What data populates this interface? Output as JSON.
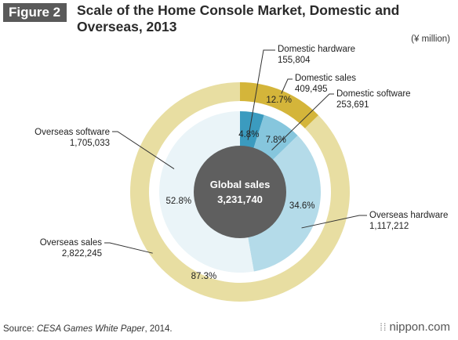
{
  "figure_label": "Figure 2",
  "title": "Scale of the Home Console Market, Domestic and Overseas, 2013",
  "unit_label": "(¥ million)",
  "source": {
    "prefix": "Source: ",
    "italic": "CESA Games White Paper",
    "suffix": ", 2014."
  },
  "logo": {
    "mark": "⁞⁞",
    "text": "nippon.com"
  },
  "colors": {
    "outer_domestic": "#d4b53a",
    "outer_overseas": "#e8dea2",
    "inner_dom_hw": "#3b9bbf",
    "inner_dom_sw": "#86c6dd",
    "inner_ovs_hw": "#b4dbe9",
    "inner_ovs_sw": "#eaf4f8",
    "center": "#5f5f5f",
    "leader": "#333333"
  },
  "chart_data": {
    "type": "pie",
    "title": "Scale of the Home Console Market, Domestic and Overseas, 2013",
    "unit": "¥ million",
    "center": {
      "label": "Global sales",
      "value": "3,231,740"
    },
    "outer_ring": [
      {
        "name": "Domestic sales",
        "value": 409495,
        "value_label": "409,495",
        "percent_label": "12.7%"
      },
      {
        "name": "Overseas sales",
        "value": 2822245,
        "value_label": "2,822,245",
        "percent_label": "87.3%"
      }
    ],
    "inner_ring": [
      {
        "name": "Domestic hardware",
        "value": 155804,
        "value_label": "155,804",
        "percent_label": "4.8%"
      },
      {
        "name": "Domestic software",
        "value": 253691,
        "value_label": "253,691",
        "percent_label": "7.8%"
      },
      {
        "name": "Overseas hardware",
        "value": 1117212,
        "value_label": "1,117,212",
        "percent_label": "34.6%"
      },
      {
        "name": "Overseas software",
        "value": 1705033,
        "value_label": "1,705,033",
        "percent_label": "52.8%"
      }
    ]
  }
}
